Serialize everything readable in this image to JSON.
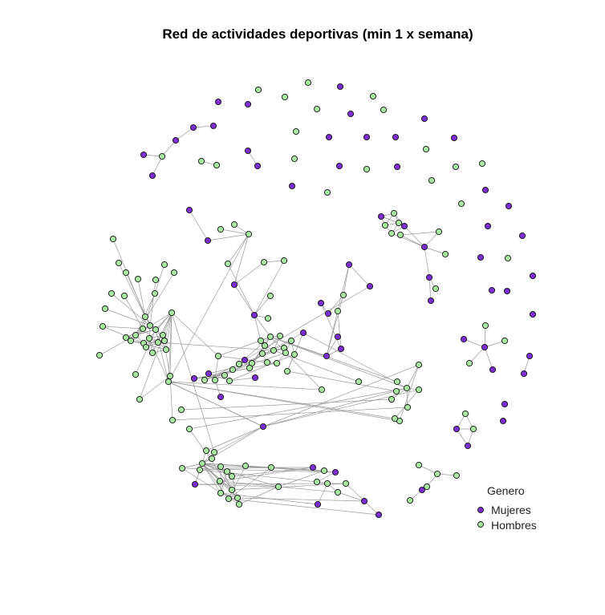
{
  "title": "Red de actividades deportivas (min 1 x semana)",
  "legend": {
    "title": "Genero",
    "items": [
      {
        "label": "Mujeres",
        "group": "M",
        "color": "#7b2fd1"
      },
      {
        "label": "Hombres",
        "group": "H",
        "color": "#a8e6a1"
      }
    ]
  }
}
